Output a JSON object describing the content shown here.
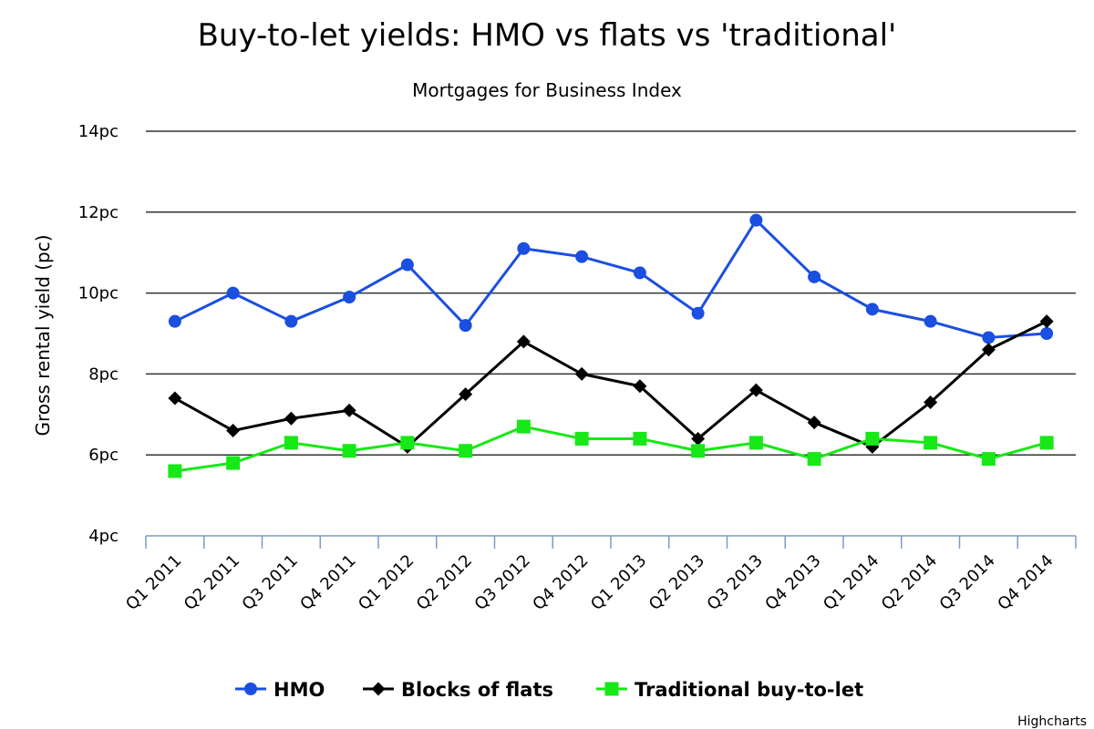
{
  "chart_data": {
    "type": "line",
    "title": "Buy-to-let yields: HMO vs flats vs 'traditional'",
    "subtitle": "Mortgages for Business Index",
    "ylabel": "Gross rental yield (pc)",
    "xlabel": "",
    "ylim": [
      4,
      14
    ],
    "yticks": [
      4,
      6,
      8,
      10,
      12,
      14
    ],
    "ytick_suffix": "pc",
    "grid": true,
    "legend_position": "bottom",
    "categories": [
      "Q1 2011",
      "Q2 2011",
      "Q3 2011",
      "Q4 2011",
      "Q1 2012",
      "Q2 2012",
      "Q3 2012",
      "Q4 2012",
      "Q1 2013",
      "Q2 2013",
      "Q3 2013",
      "Q4 2013",
      "Q1 2014",
      "Q2 2014",
      "Q3 2014",
      "Q4 2014"
    ],
    "series": [
      {
        "name": "HMO",
        "color": "#1a4fe0",
        "marker": "circle",
        "values": [
          9.3,
          10.0,
          9.3,
          9.9,
          10.7,
          9.2,
          11.1,
          10.9,
          10.5,
          9.5,
          11.8,
          10.4,
          9.6,
          9.3,
          8.9,
          9.0
        ]
      },
      {
        "name": "Blocks of flats",
        "color": "#000000",
        "marker": "diamond",
        "values": [
          7.4,
          6.6,
          6.9,
          7.1,
          6.2,
          7.5,
          8.8,
          8.0,
          7.7,
          6.4,
          7.6,
          6.8,
          6.2,
          7.3,
          8.6,
          9.3
        ]
      },
      {
        "name": "Traditional buy-to-let",
        "color": "#17e817",
        "marker": "square",
        "values": [
          5.6,
          5.8,
          6.3,
          6.1,
          6.3,
          6.1,
          6.7,
          6.4,
          6.4,
          6.1,
          6.3,
          5.9,
          6.4,
          6.3,
          5.9,
          6.3
        ]
      }
    ],
    "credit": "Highcharts"
  }
}
